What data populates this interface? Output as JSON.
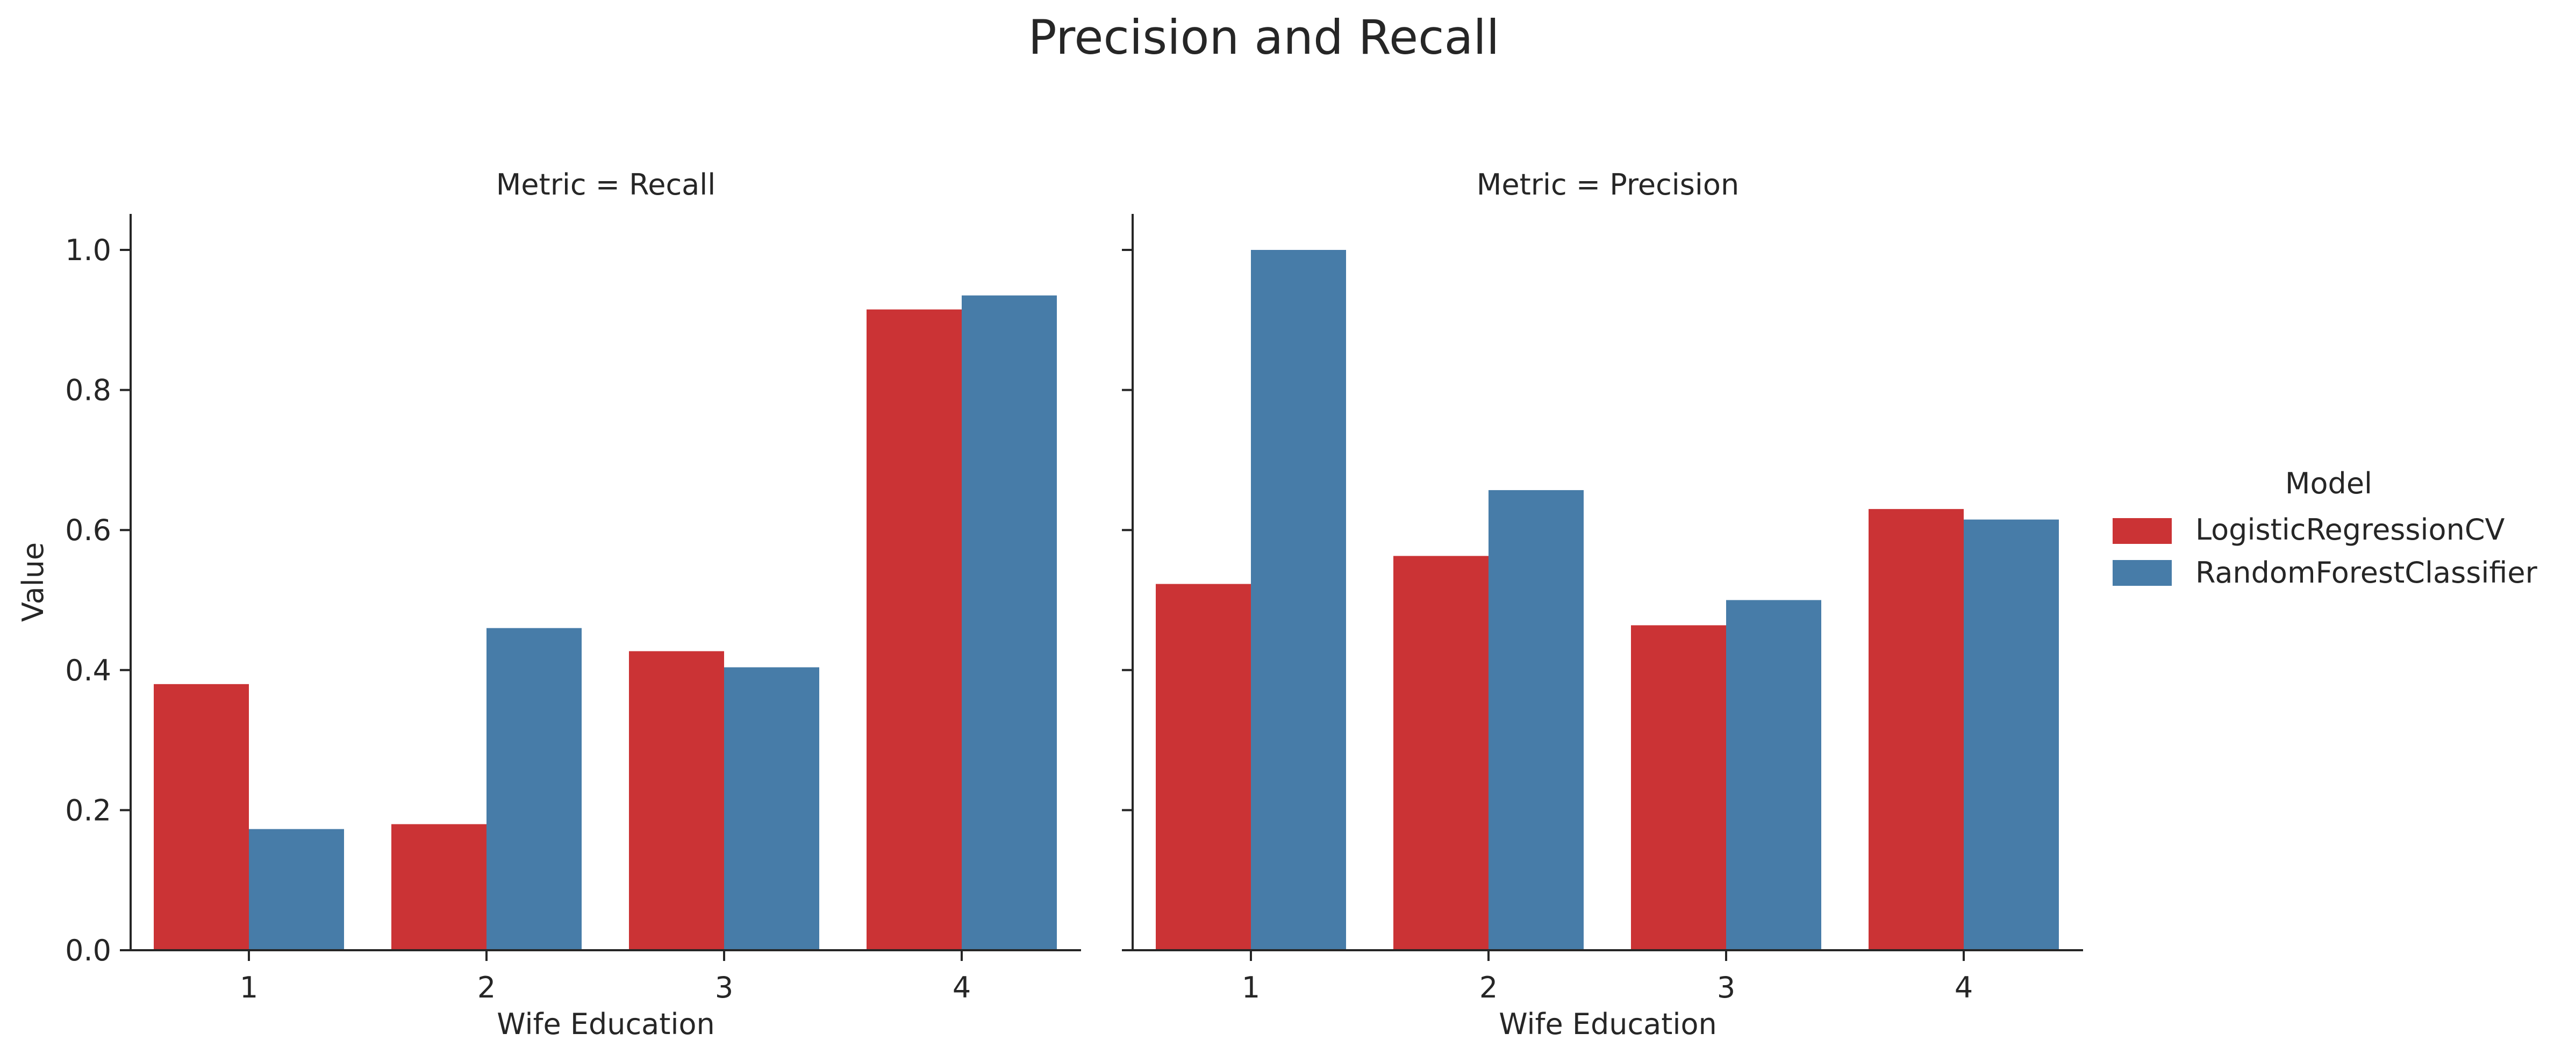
{
  "chart_data": {
    "type": "bar",
    "title": "Precision and Recall",
    "facet_variable": "Metric",
    "legend": {
      "title": "Model",
      "position": "right",
      "entries": [
        "LogisticRegressionCV",
        "RandomForestClassifier"
      ]
    },
    "xlabel": "Wife Education",
    "ylabel": "Value",
    "ylim": [
      0,
      1.05
    ],
    "yticks": [
      0.0,
      0.2,
      0.4,
      0.6,
      0.8,
      1.0
    ],
    "ytick_labels": [
      "0.0",
      "0.2",
      "0.4",
      "0.6",
      "0.8",
      "1.0"
    ],
    "categories": [
      "1",
      "2",
      "3",
      "4"
    ],
    "colors": {
      "LogisticRegressionCV": "#cb3335",
      "RandomForestClassifier": "#477ca8"
    },
    "grid": false,
    "panels": [
      {
        "title": "Metric = Recall",
        "series": [
          {
            "name": "LogisticRegressionCV",
            "values": [
              0.38,
              0.18,
              0.427,
              0.915
            ]
          },
          {
            "name": "RandomForestClassifier",
            "values": [
              0.173,
              0.46,
              0.404,
              0.935
            ]
          }
        ]
      },
      {
        "title": "Metric = Precision",
        "series": [
          {
            "name": "LogisticRegressionCV",
            "values": [
              0.523,
              0.563,
              0.464,
              0.63
            ]
          },
          {
            "name": "RandomForestClassifier",
            "values": [
              1.0,
              0.657,
              0.5,
              0.615
            ]
          }
        ]
      }
    ]
  }
}
